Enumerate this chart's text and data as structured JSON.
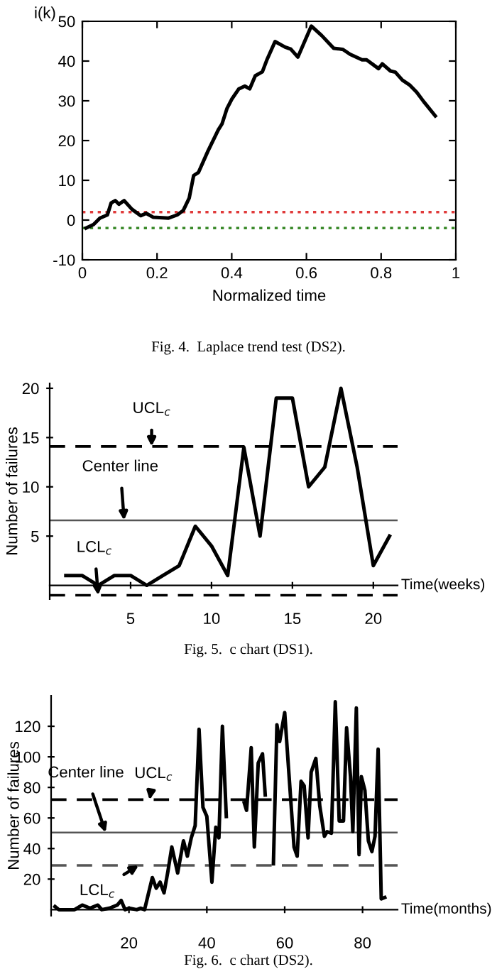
{
  "chart_data": [
    {
      "type": "line",
      "ylabel": "i(k)",
      "xlabel": "Normalized time",
      "xlim": [
        0,
        1
      ],
      "ylim": [
        -10,
        50
      ],
      "xticks": [
        0,
        0.2,
        0.4,
        0.6,
        0.8,
        1
      ],
      "yticks": [
        -10,
        0,
        10,
        20,
        30,
        40,
        50
      ],
      "grid": false,
      "marker": "none",
      "line_style": "solid",
      "series": [
        {
          "color": "#000000",
          "x": [
            0.01,
            0.03,
            0.047,
            0.067,
            0.077,
            0.088,
            0.098,
            0.112,
            0.133,
            0.156,
            0.171,
            0.19,
            0.231,
            0.254,
            0.27,
            0.286,
            0.298,
            0.311,
            0.336,
            0.364,
            0.374,
            0.387,
            0.4,
            0.419,
            0.435,
            0.448,
            0.463,
            0.482,
            0.495,
            0.516,
            0.543,
            0.558,
            0.577,
            0.613,
            0.641,
            0.673,
            0.685,
            0.698,
            0.717,
            0.749,
            0.761,
            0.793,
            0.803,
            0.825,
            0.838,
            0.857,
            0.876,
            0.895,
            0.914,
            0.945
          ],
          "values": [
            -2,
            -1.1,
            0.5,
            1.3,
            4.3,
            4.9,
            4,
            4.9,
            2.7,
            1.1,
            1.7,
            0.7,
            0.5,
            1.3,
            2.4,
            5.5,
            11.2,
            12,
            17.3,
            22.7,
            24.2,
            28,
            30.4,
            33,
            33.7,
            33,
            36.3,
            37.3,
            40.5,
            44.9,
            43.5,
            43,
            41,
            48.8,
            46.4,
            43.2,
            43.1,
            42.9,
            41.7,
            40.3,
            40.3,
            38.1,
            39.3,
            37.5,
            37.2,
            35.2,
            34,
            32.2,
            29.8,
            26.2
          ]
        }
      ],
      "ref_lines": [
        {
          "axis": "y",
          "value": 2,
          "color": "#e03a3a",
          "line_style": "dotted"
        },
        {
          "axis": "y",
          "value": -2,
          "color": "#3a8a2a",
          "line_style": "dotted"
        }
      ],
      "annotations": [
        "Fig. 4.  Laplace trend test (DS2)."
      ]
    },
    {
      "type": "line",
      "ylabel": "Number of failures",
      "xlabel": "Time(weeks)",
      "xlim": [
        0,
        21.5
      ],
      "ylim": [
        -1.4,
        20.5
      ],
      "xticks": [
        5,
        10,
        15,
        20
      ],
      "yticks": [
        5,
        10,
        15,
        20
      ],
      "grid": false,
      "marker": "none",
      "line_style": "solid",
      "series": [
        {
          "color": "#000000",
          "x": [
            1,
            2,
            3,
            4,
            5,
            6,
            7,
            8,
            9,
            10,
            11,
            12,
            13,
            14,
            15,
            16,
            17,
            18,
            19,
            20,
            21
          ],
          "values": [
            1,
            1,
            0,
            1,
            1,
            0,
            1,
            2,
            6,
            4,
            1,
            14,
            5,
            19,
            19,
            10,
            12,
            20,
            12,
            2,
            5
          ]
        }
      ],
      "ref_lines": [
        {
          "axis": "y",
          "value": 14.1,
          "color": "#000000",
          "line_style": "dashed"
        },
        {
          "axis": "y",
          "value": 6.6,
          "color": "#555555",
          "line_style": "solid"
        },
        {
          "axis": "y",
          "value": -1,
          "color": "#000000",
          "line_style": "dashed"
        }
      ],
      "annotations": [
        "Fig. 5.  c chart (DS1).",
        {
          "text": "UCL$_{c}$",
          "x": 6.3,
          "y": 14.1
        },
        {
          "text": "Center line",
          "x": 4.6,
          "y": 6.6
        },
        {
          "text": "LCL$_{c}$",
          "x": 3,
          "y": -1
        }
      ]
    },
    {
      "type": "line",
      "ylabel": "Number of failures",
      "xlabel": "Time(months)",
      "xlim": [
        0,
        89
      ],
      "ylim": [
        -4,
        140
      ],
      "xticks": [
        20,
        40,
        60,
        80
      ],
      "yticks": [
        20,
        40,
        60,
        80,
        100,
        120
      ],
      "grid": false,
      "marker": "none",
      "line_style": "solid",
      "series": [
        {
          "color": "#000000",
          "x": [
            1,
            2,
            6,
            8,
            10,
            12,
            13,
            15,
            17,
            18,
            19,
            20,
            22,
            23,
            24,
            26,
            27,
            28,
            29,
            30,
            31,
            32.5,
            34,
            35,
            36,
            37,
            38,
            39,
            40,
            41.3,
            42.3,
            43.1,
            44,
            45,
            46,
            48,
            49.6,
            50.2,
            51.4,
            52.2,
            53.2,
            54.3,
            55,
            55.5,
            56.5,
            57.1,
            58,
            58.7,
            60,
            61,
            62.4,
            63.2,
            64.2,
            65,
            66,
            66.8,
            68,
            69,
            70.2,
            70.9,
            72,
            73,
            74,
            75.1,
            75.9,
            76.9,
            77.5,
            78.4,
            79.1,
            79.7,
            80.6,
            81.5,
            82.4,
            83.2,
            84,
            84.8,
            85.7
          ],
          "values": [
            2,
            0,
            0,
            3,
            1,
            3,
            0,
            1,
            3,
            6,
            0,
            1,
            0,
            1,
            0,
            21,
            14,
            18,
            11,
            25,
            41,
            24,
            45,
            35,
            47,
            55,
            118,
            67,
            61,
            18,
            54,
            47,
            120,
            61,
            null,
            null,
            70,
            65,
            106,
            41,
            96,
            102,
            75,
            null,
            null,
            30,
            121,
            110,
            129,
            92,
            41,
            35,
            84,
            81,
            47,
            90,
            99,
            68,
            48,
            51,
            50,
            136,
            58,
            58,
            119,
            87,
            51,
            132,
            36,
            87,
            78,
            45,
            38,
            48,
            105,
            7,
            8
          ]
        }
      ],
      "ref_lines": [
        {
          "axis": "y",
          "value": 72,
          "color": "#000000",
          "line_style": "dashed"
        },
        {
          "axis": "y",
          "value": 50.5,
          "color": "#555555",
          "line_style": "solid"
        },
        {
          "axis": "y",
          "value": 29,
          "color": "#555555",
          "line_style": "dashed"
        }
      ],
      "annotations": [
        "Fig. 6.  c chart (DS2).",
        {
          "text": "UCL$_{c}$",
          "x": 25.3,
          "y": 72
        },
        {
          "text": "Center line",
          "x": 14,
          "y": 50.5
        },
        {
          "text": "LCL$_{c}$",
          "x": 22.5,
          "y": 29
        }
      ]
    }
  ]
}
